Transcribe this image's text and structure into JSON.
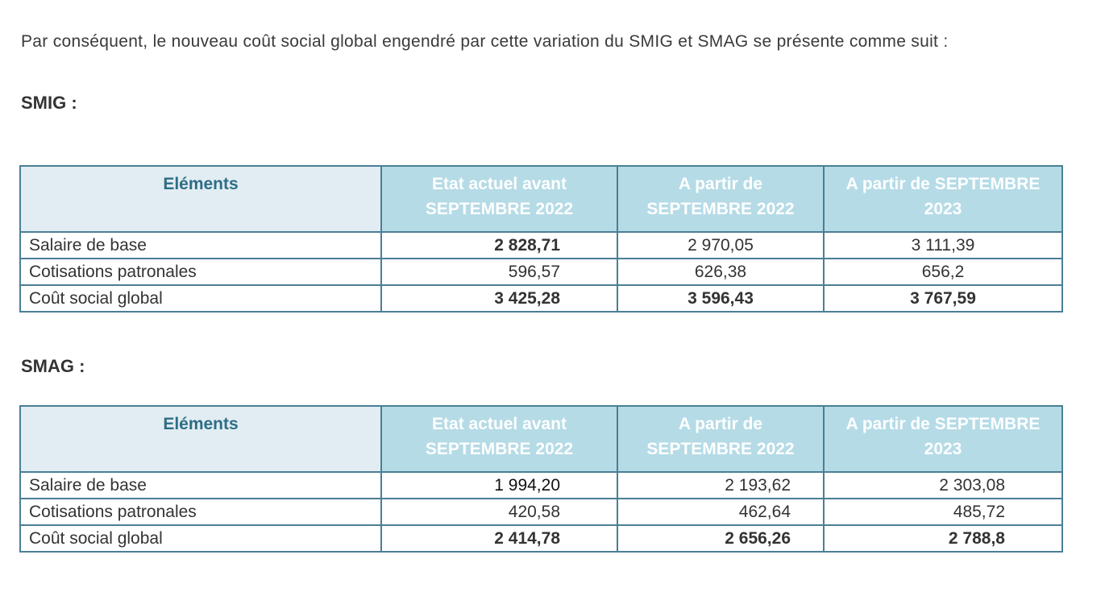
{
  "intro": "Par conséquent, le nouveau coût social global engendré par cette variation du SMIG et SMAG se présente comme suit :",
  "tables": [
    {
      "title": "SMIG :",
      "headers": [
        "Eléments",
        "Etat actuel avant SEPTEMBRE 2022",
        "A partir de SEPTEMBRE 2022",
        "A partir de SEPTEMBRE 2023"
      ],
      "rows": [
        {
          "label": "Salaire de base",
          "values": [
            "2 828,71",
            "2 970,05",
            "3 111,39"
          ]
        },
        {
          "label": "Cotisations  patronales",
          "values": [
            "596,57",
            "626,38",
            "656,2"
          ]
        },
        {
          "label": "Coût social global",
          "values": [
            "3 425,28",
            "3 596,43",
            "3 767,59"
          ]
        }
      ]
    },
    {
      "title": "SMAG :",
      "headers": [
        "Eléments",
        "Etat actuel avant SEPTEMBRE 2022",
        "A partir de SEPTEMBRE 2022",
        "A partir de SEPTEMBRE 2023"
      ],
      "rows": [
        {
          "label": "Salaire de base",
          "values": [
            "1 994,20",
            "2 193,62",
            "2 303,08"
          ]
        },
        {
          "label": "Cotisations  patronales",
          "values": [
            "420,58",
            "462,64",
            "485,72"
          ]
        },
        {
          "label": "Coût social global",
          "values": [
            "2 414,78",
            "2 656,26",
            "2 788,8"
          ]
        }
      ]
    }
  ],
  "colors": {
    "header_bg": "#b5dbe6",
    "header_first_bg": "#e2edf3",
    "border": "#4a7f95",
    "header_text_first": "#2e6e86"
  }
}
